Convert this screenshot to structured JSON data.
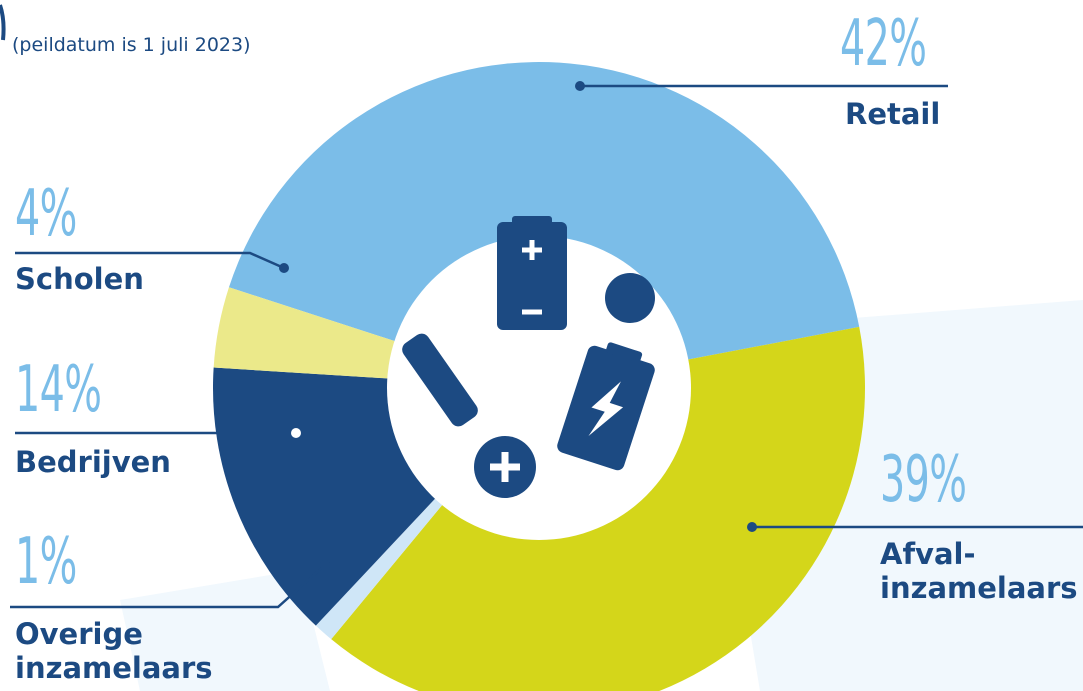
{
  "chart_data": {
    "type": "pie",
    "subtitle": "(peildatum is 1 juli 2023)",
    "categories": [
      "Retail",
      "Afval-inzamelaars",
      "Overige inzamelaars",
      "Bedrijven",
      "Scholen"
    ],
    "values": [
      42,
      39,
      1,
      14,
      4
    ],
    "value_labels": [
      "42%",
      "39%",
      "1%",
      "14%",
      "4%"
    ],
    "colors": [
      "#7bbde8",
      "#d4d61a",
      "#cfe6f7",
      "#1c4a82",
      "#ebe98a"
    ]
  }
}
